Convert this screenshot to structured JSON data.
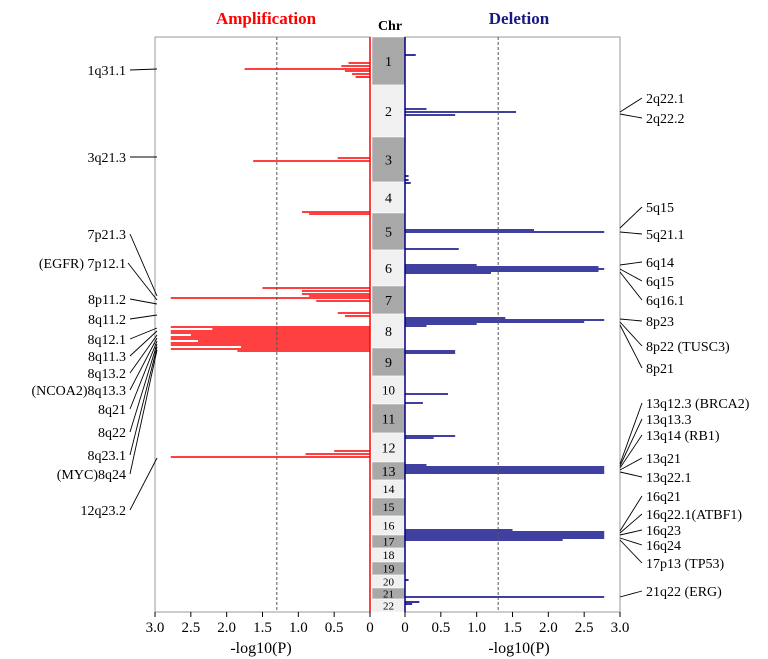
{
  "chart_data": {
    "type": "bar",
    "panels": {
      "amplification": {
        "title": "Amplification",
        "xlabel": "-log10(P)",
        "xlim": [
          3.0,
          0
        ],
        "threshold": 1.3,
        "color": "#ff0000"
      },
      "deletion": {
        "title": "Deletion",
        "xlabel": "-log10(P)",
        "xlim": [
          0,
          3.0
        ],
        "threshold": 1.3,
        "color": "#000080"
      }
    },
    "chromosome_header": "Chr",
    "ticks": [
      "3.0",
      "2.5",
      "2.0",
      "1.5",
      "1.0",
      "0.5",
      "0"
    ],
    "del_ticks": [
      "0",
      "0.5",
      "1.0",
      "1.5",
      "2.0",
      "2.5",
      "3.0"
    ],
    "chromosomes": [
      "1",
      "2",
      "3",
      "4",
      "5",
      "6",
      "7",
      "8",
      "9",
      "10",
      "11",
      "12",
      "13",
      "14",
      "15",
      "16",
      "17",
      "18",
      "19",
      "20",
      "21",
      "22"
    ],
    "amplification_bars": [
      {
        "y": 63,
        "v": 0.3
      },
      {
        "y": 66,
        "v": 0.4
      },
      {
        "y": 69,
        "v": 1.75
      },
      {
        "y": 71,
        "v": 0.35
      },
      {
        "y": 74,
        "v": 0.25
      },
      {
        "y": 77,
        "v": 0.2
      },
      {
        "y": 158,
        "v": 0.45
      },
      {
        "y": 161,
        "v": 1.63
      },
      {
        "y": 212,
        "v": 0.95
      },
      {
        "y": 214,
        "v": 0.85
      },
      {
        "y": 288,
        "v": 1.5
      },
      {
        "y": 291,
        "v": 0.95
      },
      {
        "y": 294,
        "v": 0.95
      },
      {
        "y": 296,
        "v": 0.85
      },
      {
        "y": 298,
        "v": 2.78
      },
      {
        "y": 301,
        "v": 0.75
      },
      {
        "y": 313,
        "v": 0.45
      },
      {
        "y": 316,
        "v": 0.35
      },
      {
        "y": 327,
        "v": 2.78
      },
      {
        "y": 329,
        "v": 2.2
      },
      {
        "y": 331,
        "v": 2.78
      },
      {
        "y": 333,
        "v": 2.78
      },
      {
        "y": 335,
        "v": 2.5
      },
      {
        "y": 337,
        "v": 2.78
      },
      {
        "y": 339,
        "v": 2.78
      },
      {
        "y": 341,
        "v": 2.4
      },
      {
        "y": 343,
        "v": 2.78
      },
      {
        "y": 345,
        "v": 2.78
      },
      {
        "y": 347,
        "v": 1.8
      },
      {
        "y": 349,
        "v": 2.78
      },
      {
        "y": 351,
        "v": 1.85
      },
      {
        "y": 451,
        "v": 0.5
      },
      {
        "y": 454,
        "v": 0.9
      },
      {
        "y": 457,
        "v": 2.78
      }
    ],
    "deletion_bars": [
      {
        "y": 55,
        "v": 0.15
      },
      {
        "y": 109,
        "v": 0.3
      },
      {
        "y": 112,
        "v": 1.55
      },
      {
        "y": 115,
        "v": 0.7
      },
      {
        "y": 176,
        "v": 0.05
      },
      {
        "y": 180,
        "v": 0.05
      },
      {
        "y": 183,
        "v": 0.08
      },
      {
        "y": 230,
        "v": 1.8
      },
      {
        "y": 232,
        "v": 2.78
      },
      {
        "y": 249,
        "v": 0.75
      },
      {
        "y": 265,
        "v": 1.0
      },
      {
        "y": 267,
        "v": 2.7
      },
      {
        "y": 269,
        "v": 2.78
      },
      {
        "y": 271,
        "v": 2.7
      },
      {
        "y": 273,
        "v": 1.2
      },
      {
        "y": 318,
        "v": 1.4
      },
      {
        "y": 320,
        "v": 2.78
      },
      {
        "y": 322,
        "v": 2.5
      },
      {
        "y": 324,
        "v": 1.0
      },
      {
        "y": 326,
        "v": 0.3
      },
      {
        "y": 351,
        "v": 0.7
      },
      {
        "y": 353,
        "v": 0.7
      },
      {
        "y": 394,
        "v": 0.6
      },
      {
        "y": 403,
        "v": 0.25
      },
      {
        "y": 436,
        "v": 0.7
      },
      {
        "y": 438,
        "v": 0.4
      },
      {
        "y": 465,
        "v": 0.3
      },
      {
        "y": 467,
        "v": 2.78
      },
      {
        "y": 469,
        "v": 2.78
      },
      {
        "y": 471,
        "v": 2.78
      },
      {
        "y": 473,
        "v": 2.78
      },
      {
        "y": 530,
        "v": 1.5
      },
      {
        "y": 532,
        "v": 2.78
      },
      {
        "y": 534,
        "v": 2.78
      },
      {
        "y": 536,
        "v": 2.78
      },
      {
        "y": 538,
        "v": 2.78
      },
      {
        "y": 540,
        "v": 2.2
      },
      {
        "y": 580,
        "v": 0.05
      },
      {
        "y": 597,
        "v": 2.78
      },
      {
        "y": 602,
        "v": 0.2
      },
      {
        "y": 604,
        "v": 0.1
      }
    ],
    "left_labels": [
      "1q31.1",
      "3q21.3",
      "7p21.3",
      "(EGFR) 7p12.1",
      "8p11.2",
      "8q11.2",
      "8q12.1",
      "8q11.3",
      "8q13.2",
      "(NCOA2)8q13.3",
      "8q21",
      "8q22",
      "8q23.1",
      "(MYC)8q24",
      "12q23.2"
    ],
    "right_labels": [
      "2q22.1",
      "2q22.2",
      "5q15",
      "5q21.1",
      "6q14",
      "6q15",
      "6q16.1",
      "8p23",
      "8p22 (TUSC3)",
      "8p21",
      "13q12.3 (BRCA2)",
      "13q13.3",
      "13q14 (RB1)",
      "13q21",
      "13q22.1",
      "16q21",
      "16q22.1(ATBF1)",
      "16q23",
      "16q24",
      "17p13 (TP53)",
      "21q22 (ERG)"
    ]
  }
}
